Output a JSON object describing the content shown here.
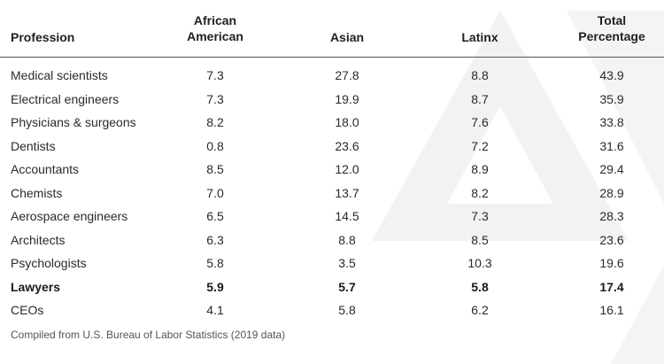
{
  "table": {
    "columns": [
      "Profession",
      "African American",
      "Asian",
      "Latinx",
      "Total Percentage"
    ],
    "header_lines": {
      "c1": [
        "African",
        "American"
      ],
      "c4": [
        "Total",
        "Percentage"
      ]
    },
    "rows": [
      [
        "Medical scientists",
        "7.3",
        "27.8",
        "8.8",
        "43.9"
      ],
      [
        "Electrical engineers",
        "7.3",
        "19.9",
        "8.7",
        "35.9"
      ],
      [
        "Physicians & surgeons",
        "8.2",
        "18.0",
        "7.6",
        "33.8"
      ],
      [
        "Dentists",
        "0.8",
        "23.6",
        "7.2",
        "31.6"
      ],
      [
        "Accountants",
        "8.5",
        "12.0",
        "8.9",
        "29.4"
      ],
      [
        "Chemists",
        "7.0",
        "13.7",
        "8.2",
        "28.9"
      ],
      [
        "Aerospace engineers",
        "6.5",
        "14.5",
        "7.3",
        "28.3"
      ],
      [
        "Architects",
        "6.3",
        "8.8",
        "8.5",
        "23.6"
      ],
      [
        "Psychologists",
        "5.8",
        "3.5",
        "10.3",
        "19.6"
      ],
      [
        "Lawyers",
        "5.9",
        "5.7",
        "5.8",
        "17.4"
      ],
      [
        "CEOs",
        "4.1",
        "5.8",
        "6.2",
        "16.1"
      ]
    ],
    "highlighted_row": "Lawyers"
  },
  "source_note": "Compiled from U.S. Bureau of Labor Statistics (2019 data)",
  "colors": {
    "text": "#1f1f1f",
    "rule": "#555555",
    "watermark": "#f1f1f1"
  }
}
